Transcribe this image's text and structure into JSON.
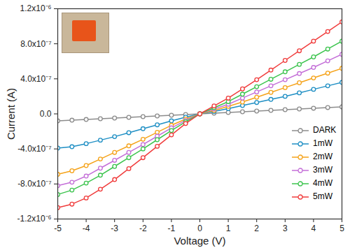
{
  "chart_data": {
    "type": "line",
    "x_label": "Voltage (V)",
    "y_label": "Current (A)",
    "xlim": [
      -5,
      5
    ],
    "xticks": [
      -5,
      -4,
      -3,
      -2,
      -1,
      0,
      1,
      2,
      3,
      4,
      5
    ],
    "ylim": [
      -1.2e-06,
      1.2e-06
    ],
    "yticks": [
      {
        "value": -1.2e-06,
        "label": "-1.2x10⁻⁶"
      },
      {
        "value": -8e-07,
        "label": "-8.0x10⁻⁷"
      },
      {
        "value": -4e-07,
        "label": "-4.0x10⁻⁷"
      },
      {
        "value": 0,
        "label": "0.0"
      },
      {
        "value": 4e-07,
        "label": "4.0x10⁻⁷"
      },
      {
        "value": 8e-07,
        "label": "8.0x10⁻⁷"
      },
      {
        "value": 1.2e-06,
        "label": "1.2x10⁻⁶"
      }
    ],
    "grid": false,
    "legend": "lower right",
    "marker": "circle",
    "line_style": "solid",
    "x": [
      -5,
      -4.5,
      -4,
      -3.5,
      -3,
      -2.5,
      -2,
      -1.5,
      -1,
      -0.5,
      0,
      0.5,
      1,
      1.5,
      2,
      2.5,
      3,
      3.5,
      4,
      4.5,
      5
    ],
    "series": [
      {
        "name": "DARK",
        "color": "#8c8c8c",
        "values": [
          -8e-08,
          -7.2e-08,
          -6.4e-08,
          -5.6e-08,
          -4.8e-08,
          -4e-08,
          -3.2e-08,
          -2.4e-08,
          -1.6e-08,
          -8e-09,
          0,
          8e-09,
          1.6e-08,
          2.4e-08,
          3.2e-08,
          4e-08,
          4.8e-08,
          5.6e-08,
          6.4e-08,
          7.2e-08,
          8e-08
        ]
      },
      {
        "name": "1mW",
        "color": "#1f8fc4",
        "values": [
          -3.9e-07,
          -3.75e-07,
          -3.4e-07,
          -3e-07,
          -2.6e-07,
          -2.15e-07,
          -1.7e-07,
          -1.25e-07,
          -8e-08,
          -3.8e-08,
          0,
          2.8e-08,
          6e-08,
          9.5e-08,
          1.3e-07,
          1.65e-07,
          2e-07,
          2.4e-07,
          2.8e-07,
          3.2e-07,
          3.6e-07
        ]
      },
      {
        "name": "2mW",
        "color": "#f5a31a",
        "values": [
          -6.9e-07,
          -6.5e-07,
          -5.9e-07,
          -5.15e-07,
          -4.4e-07,
          -3.65e-07,
          -2.9e-07,
          -2.1e-07,
          -1.3e-07,
          -6e-08,
          0,
          4e-08,
          8.5e-08,
          1.35e-07,
          1.9e-07,
          2.45e-07,
          3e-07,
          3.55e-07,
          4.1e-07,
          4.65e-07,
          5.2e-07
        ]
      },
      {
        "name": "3mW",
        "color": "#c46fd8",
        "values": [
          -8.2e-07,
          -7.8e-07,
          -7.1e-07,
          -6.2e-07,
          -5.3e-07,
          -4.4e-07,
          -3.5e-07,
          -2.55e-07,
          -1.6e-07,
          -7.5e-08,
          0,
          5.5e-08,
          1.1e-07,
          1.8e-07,
          2.5e-07,
          3.2e-07,
          3.9e-07,
          4.6e-07,
          5.3e-07,
          6.05e-07,
          6.8e-07
        ]
      },
      {
        "name": "4mW",
        "color": "#3cc44e",
        "values": [
          -9.2e-07,
          -8.7e-07,
          -7.9e-07,
          -7e-07,
          -6e-07,
          -5e-07,
          -4e-07,
          -2.95e-07,
          -1.9e-07,
          -9e-08,
          0,
          7e-08,
          1.4e-07,
          2.25e-07,
          3.1e-07,
          3.95e-07,
          4.8e-07,
          5.65e-07,
          6.5e-07,
          7.4e-07,
          8.3e-07
        ]
      },
      {
        "name": "5mW",
        "color": "#f03c3c",
        "values": [
          -1.07e-06,
          -1.03e-06,
          -9.6e-07,
          -8.6e-07,
          -7.5e-07,
          -6.25e-07,
          -5e-07,
          -3.7e-07,
          -2.4e-07,
          -1.1e-07,
          0,
          9e-08,
          1.8e-07,
          2.85e-07,
          3.9e-07,
          5e-07,
          6.1e-07,
          7.2e-07,
          8.3e-07,
          9.4e-07,
          1.05e-06
        ]
      }
    ]
  }
}
